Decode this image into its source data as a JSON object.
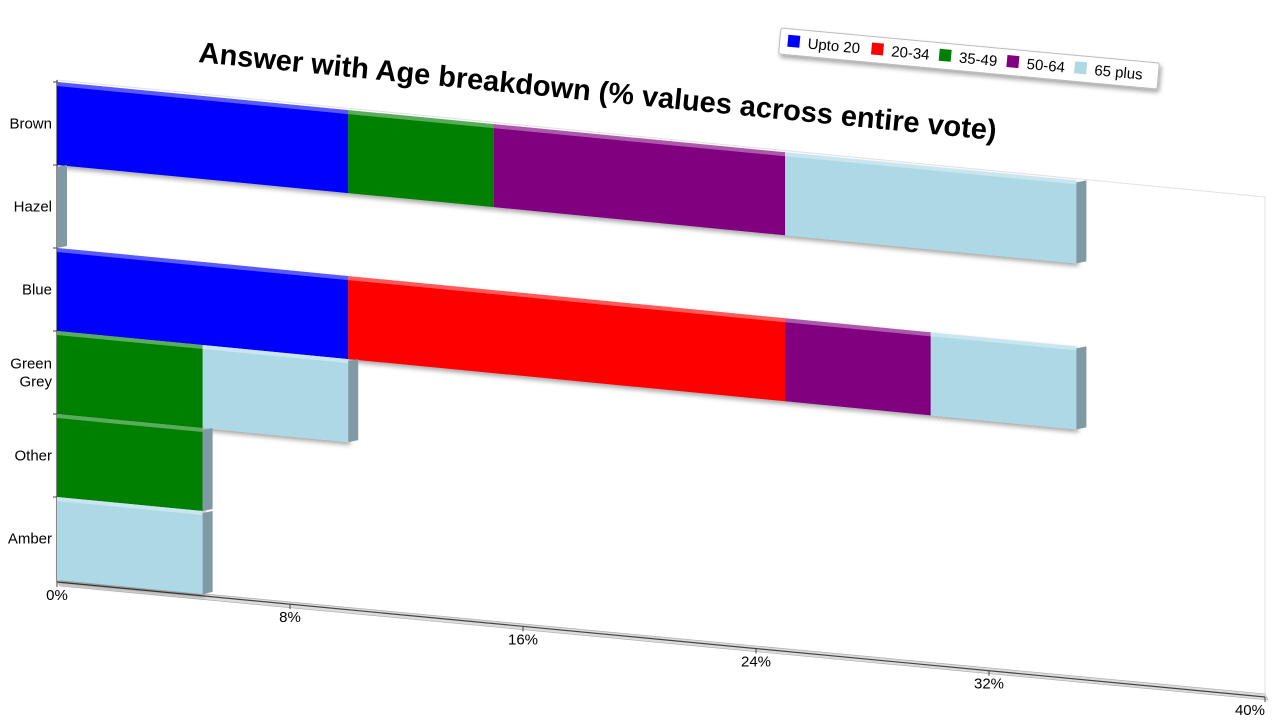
{
  "chart_data": {
    "type": "bar",
    "orientation": "horizontal",
    "stacked": true,
    "title": "Answer with Age breakdown (% values across entire vote)",
    "categories": [
      "Brown",
      "Hazel",
      "Blue",
      "Green\nGrey",
      "Other",
      "Amber"
    ],
    "category_lines": [
      [
        "Brown"
      ],
      [
        "Hazel"
      ],
      [
        "Blue"
      ],
      [
        "Green",
        "Grey"
      ],
      [
        "Other"
      ],
      [
        "Amber"
      ]
    ],
    "series": [
      {
        "name": "Upto 20",
        "color": "#0000ff",
        "values": [
          10,
          0,
          10,
          0,
          0,
          0
        ]
      },
      {
        "name": "20-34",
        "color": "#ff0000",
        "values": [
          0,
          0,
          15,
          0,
          0,
          0
        ]
      },
      {
        "name": "35-49",
        "color": "#008000",
        "values": [
          5,
          0,
          0,
          5,
          5,
          0
        ]
      },
      {
        "name": "50-64",
        "color": "#800080",
        "values": [
          10,
          0,
          5,
          0,
          0,
          0
        ]
      },
      {
        "name": "65 plus",
        "color": "#add8e6",
        "values": [
          10,
          0,
          5,
          5,
          0,
          5
        ]
      }
    ],
    "xlim": [
      0,
      40
    ],
    "x_ticks": [
      "0%",
      "8%",
      "16%",
      "24%",
      "32%",
      "40%"
    ],
    "legend_position": "top-right",
    "grid": false
  }
}
